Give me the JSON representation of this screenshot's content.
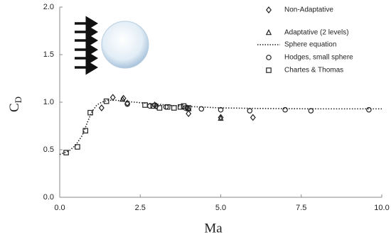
{
  "chart_data": {
    "type": "scatter",
    "xlabel": "Ma",
    "ylabel": {
      "text": "C",
      "subscript": "D"
    },
    "xlim": [
      0,
      10
    ],
    "ylim": [
      0,
      2
    ],
    "xticks": [
      {
        "value": 0,
        "label": "0.0"
      },
      {
        "value": 2.5,
        "label": "2.5"
      },
      {
        "value": 5,
        "label": "5.0"
      },
      {
        "value": 7.5,
        "label": "7.5"
      },
      {
        "value": 10,
        "label": "10.0"
      }
    ],
    "yticks": [
      {
        "value": 0,
        "label": "0.0"
      },
      {
        "value": 0.5,
        "label": "0.5"
      },
      {
        "value": 1,
        "label": "1.0"
      },
      {
        "value": 1.5,
        "label": "1.5"
      },
      {
        "value": 2,
        "label": "2.0"
      }
    ],
    "legend": "top-right",
    "series": [
      {
        "name": "Non-Adaptative",
        "marker": "diamond",
        "color": "#222222",
        "x": [
          1.3,
          1.65,
          1.98,
          2.1,
          2.95,
          3.0,
          3.95,
          4.0,
          5.0,
          6.0
        ],
        "values": [
          0.94,
          1.05,
          1.04,
          0.99,
          0.97,
          0.96,
          0.94,
          0.88,
          0.84,
          0.84
        ]
      },
      {
        "name": "Adaptative (2 levels)",
        "marker": "triangle",
        "color": "#222222",
        "x": [
          1.95,
          4.0,
          5.0
        ],
        "values": [
          1.03,
          0.93,
          0.83
        ]
      },
      {
        "name": "Sphere equation",
        "marker": "dotted-line",
        "color": "#222222",
        "x": [
          0,
          0.3,
          0.5,
          0.7,
          0.85,
          1.0,
          1.15,
          1.3,
          1.5,
          1.75,
          2.0,
          2.5,
          3.0,
          3.5,
          4.0,
          5.0,
          6.0,
          7.0,
          8.0,
          9.0,
          10.0
        ],
        "values": [
          0.45,
          0.49,
          0.55,
          0.65,
          0.78,
          0.9,
          0.97,
          1.0,
          1.02,
          1.02,
          1.01,
          0.995,
          0.98,
          0.965,
          0.955,
          0.94,
          0.935,
          0.932,
          0.93,
          0.93,
          0.93
        ]
      },
      {
        "name": "Hodges, small sphere",
        "marker": "circle",
        "color": "#222222",
        "x": [
          2.1,
          2.8,
          3.3,
          3.9,
          4.4,
          5.0,
          5.9,
          7.0,
          7.8,
          9.6
        ],
        "values": [
          0.98,
          0.96,
          0.95,
          0.94,
          0.93,
          0.92,
          0.91,
          0.92,
          0.91,
          0.92
        ]
      },
      {
        "name": "Chartes & Thomas",
        "marker": "square",
        "color": "#222222",
        "x": [
          0.2,
          0.55,
          0.8,
          0.95,
          1.45,
          2.65,
          2.9,
          3.1,
          3.35,
          3.55,
          3.75,
          3.85,
          4.0
        ],
        "values": [
          0.47,
          0.53,
          0.7,
          0.89,
          1.01,
          0.97,
          0.96,
          0.94,
          0.95,
          0.94,
          0.95,
          0.96,
          0.94
        ]
      }
    ]
  }
}
